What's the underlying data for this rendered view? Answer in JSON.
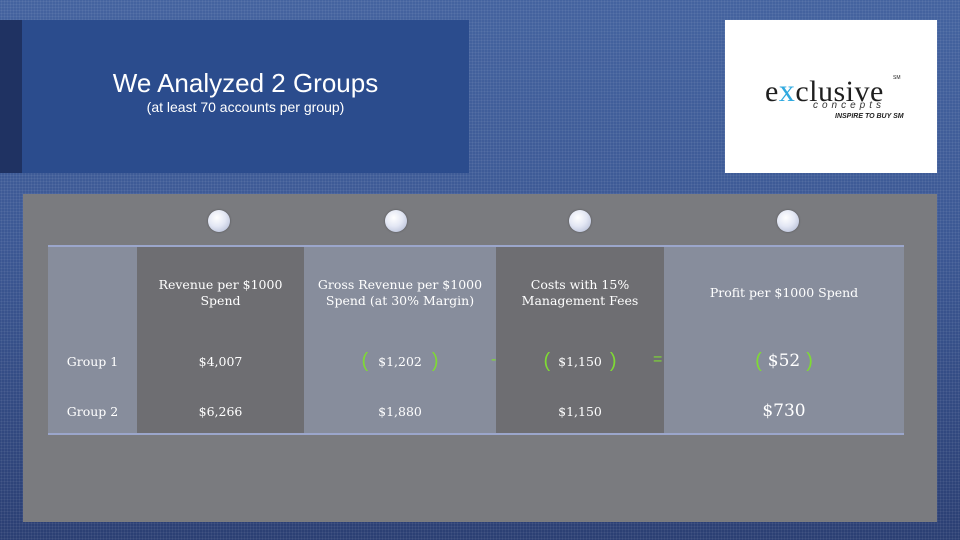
{
  "title": {
    "main": "We Analyzed 2 Groups",
    "sub": "(at least 70 accounts per group)"
  },
  "logo": {
    "word_start": "e",
    "word_x": "x",
    "word_end": "clusive",
    "service_mark": "SM",
    "concepts": "concepts",
    "tagline": "INSPIRE TO BUY SM",
    "accent_color": "#2fa9df"
  },
  "table": {
    "headers": [
      "",
      "Revenue per $1000 Spend",
      "Gross Revenue per $1000 Spend (at 30% Margin)",
      "Costs with 15% Management Fees",
      "Profit per $1000 Spend"
    ],
    "rows": [
      {
        "label": "Group 1",
        "revenue": "$4,007",
        "gross": "$1,202",
        "costs": "$1,150",
        "profit": "$52"
      },
      {
        "label": "Group 2",
        "revenue": "$6,266",
        "gross": "$1,880",
        "costs": "$1,150",
        "profit": "$730"
      }
    ],
    "operators": {
      "minus": "-",
      "equals": "="
    },
    "paren_open": "(",
    "paren_close": ")",
    "highlight_color": "#7fda34"
  }
}
